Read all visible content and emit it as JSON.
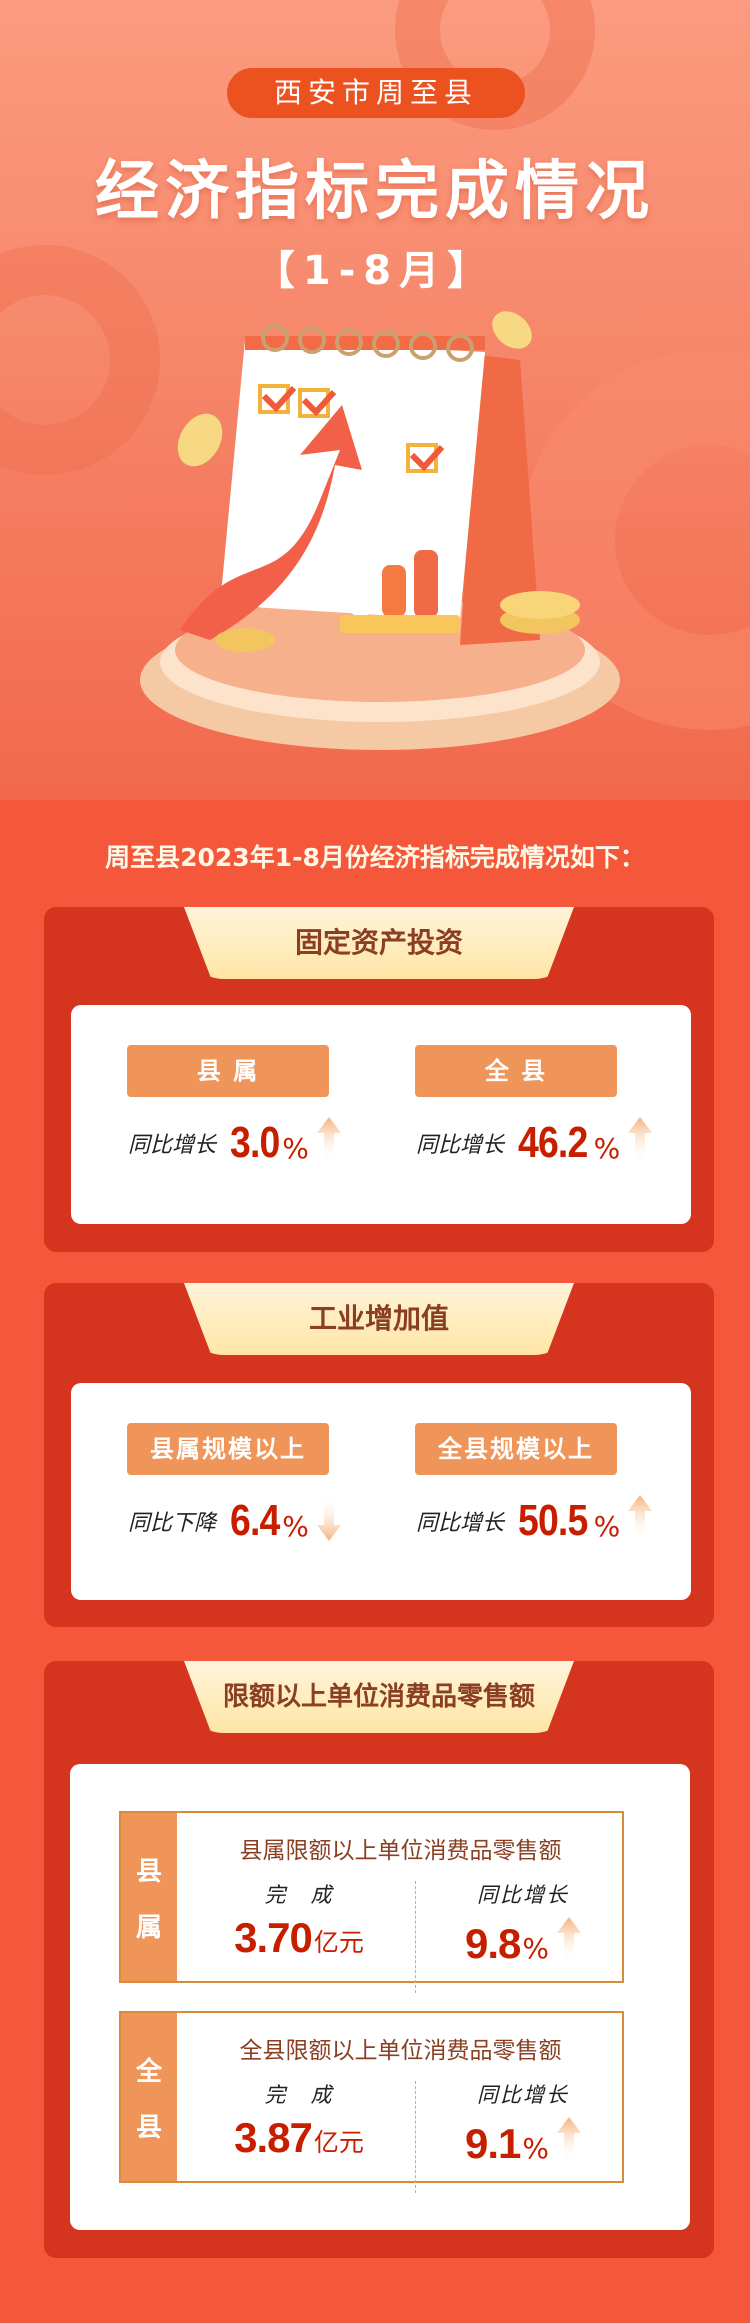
{
  "header": {
    "region": "西安市周至县",
    "title": "经济指标完成情况",
    "period": "【1-8月】"
  },
  "intro": "周至县2023年1-8月份经济指标完成情况如下：",
  "colors": {
    "background": "#f5573b",
    "card": "#d5341e",
    "tab": "#ffe6a6",
    "button": "#f0955a",
    "value": "#c81e00"
  },
  "sections": [
    {
      "title": "固定资产投资",
      "items": [
        {
          "label": "县 属",
          "stat_label": "同比增长",
          "value": "3.0",
          "unit": "%",
          "trend": "up"
        },
        {
          "label": "全 县",
          "stat_label": "同比增长",
          "value": "46.2",
          "unit": "%",
          "trend": "up"
        }
      ]
    },
    {
      "title": "工业增加值",
      "items": [
        {
          "label": "县属规模以上",
          "stat_label": "同比下降",
          "value": "6.4",
          "unit": "%",
          "trend": "down"
        },
        {
          "label": "全县规模以上",
          "stat_label": "同比增长",
          "value": "50.5",
          "unit": "%",
          "trend": "up"
        }
      ]
    },
    {
      "title": "限额以上单位消费品零售额",
      "boxes": [
        {
          "band": [
            "县",
            "属"
          ],
          "title": "县属限额以上单位消费品零售额",
          "done_label": "完　成",
          "done_value": "3.70",
          "done_unit": "亿元",
          "growth_label": "同比增长",
          "growth_value": "9.8",
          "growth_unit": "%",
          "trend": "up"
        },
        {
          "band": [
            "全",
            "县"
          ],
          "title": "全县限额以上单位消费品零售额",
          "done_label": "完　成",
          "done_value": "3.87",
          "done_unit": "亿元",
          "growth_label": "同比增长",
          "growth_value": "9.1",
          "growth_unit": "%",
          "trend": "up"
        }
      ]
    }
  ]
}
